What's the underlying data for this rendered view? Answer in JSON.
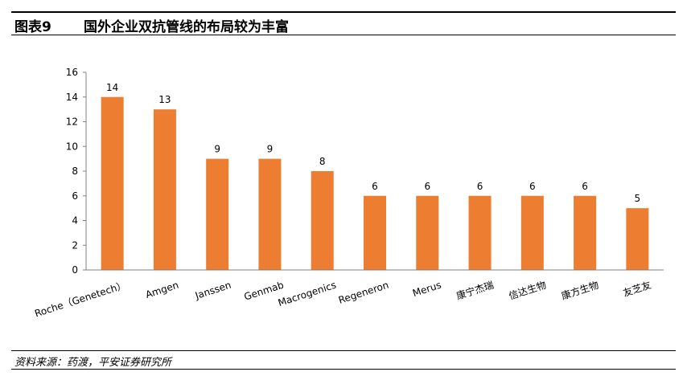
{
  "figure": {
    "label": "图表9",
    "title": "国外企业双抗管线的布局较为丰富",
    "source": "资料来源：药渡，平安证券研究所"
  },
  "chart_data": {
    "type": "bar",
    "categories": [
      "Roche（Genetech）",
      "Amgen",
      "Janssen",
      "Genmab",
      "Macrogenics",
      "Regeneron",
      "Merus",
      "康宁杰瑞",
      "信达生物",
      "康方生物",
      "友芝友"
    ],
    "values": [
      14,
      13,
      9,
      9,
      8,
      6,
      6,
      6,
      6,
      6,
      5
    ],
    "data_labels": [
      "14",
      "13",
      "9",
      "9",
      "8",
      "6",
      "6",
      "6",
      "6",
      "6",
      "5"
    ],
    "ylim": [
      0,
      16
    ],
    "yticks": [
      0,
      2,
      4,
      6,
      8,
      10,
      12,
      14,
      16
    ],
    "ytick_labels": [
      "0",
      "2",
      "4",
      "6",
      "8",
      "10",
      "12",
      "14",
      "16"
    ],
    "xlabel": "",
    "ylabel": "",
    "bar_color": "#ED7D31",
    "grid": false,
    "legend": "none"
  }
}
